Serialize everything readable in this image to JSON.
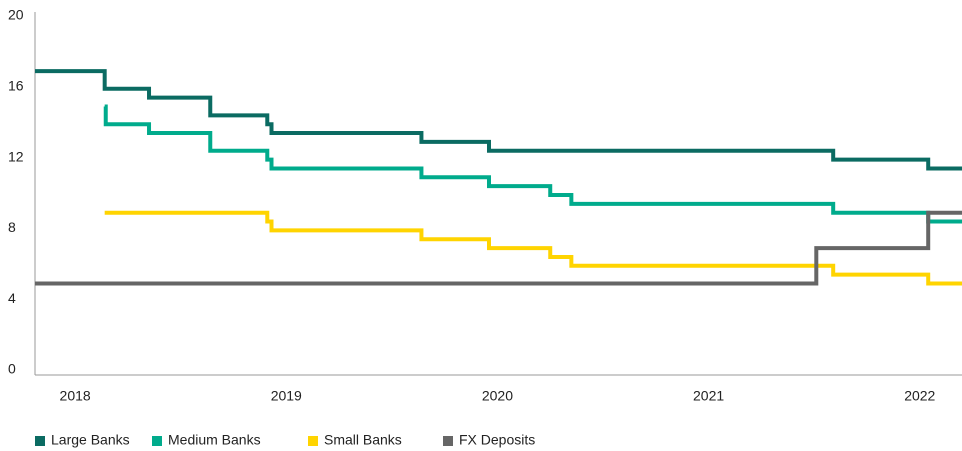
{
  "chart_data": {
    "type": "step",
    "xlim": [
      2017.81,
      2022.2
    ],
    "xticks": [
      2018,
      2019,
      2020,
      2021,
      2022
    ],
    "ylim": [
      0,
      20
    ],
    "yticks": [
      0,
      4,
      8,
      12,
      16,
      20
    ],
    "grid": false,
    "legend": "bottom",
    "series": [
      {
        "name": "Large Banks",
        "color": "#0b6b62",
        "x": [
          2017.81,
          2018.14,
          2018.35,
          2018.64,
          2018.91,
          2018.93,
          2019.64,
          2019.96,
          2021.59,
          2022.04,
          2022.2
        ],
        "values": [
          17,
          16,
          15.5,
          14.5,
          14,
          13.5,
          13,
          12.5,
          12,
          11.5,
          11.5
        ]
      },
      {
        "name": "Medium Banks",
        "color": "#00ab8c",
        "x": [
          2018.14,
          2018.145,
          2018.35,
          2018.64,
          2018.91,
          2018.93,
          2019.64,
          2019.96,
          2020.25,
          2020.35,
          2021.59,
          2022.04,
          2022.2
        ],
        "values": [
          15,
          14,
          13.5,
          12.5,
          12,
          11.5,
          11,
          10.5,
          10,
          9.5,
          9,
          8.5,
          8.5
        ]
      },
      {
        "name": "Small Banks",
        "color": "#ffd400",
        "x": [
          2018.14,
          2018.91,
          2018.93,
          2019.64,
          2019.96,
          2020.25,
          2020.35,
          2021.59,
          2022.04,
          2022.2
        ],
        "values": [
          9,
          8.5,
          8,
          7.5,
          7,
          6.5,
          6,
          5.5,
          5,
          5
        ]
      },
      {
        "name": "FX Deposits",
        "color": "#666666",
        "x": [
          2017.81,
          2021.51,
          2022.04,
          2022.2
        ],
        "values": [
          5,
          7,
          9,
          9
        ]
      }
    ]
  }
}
